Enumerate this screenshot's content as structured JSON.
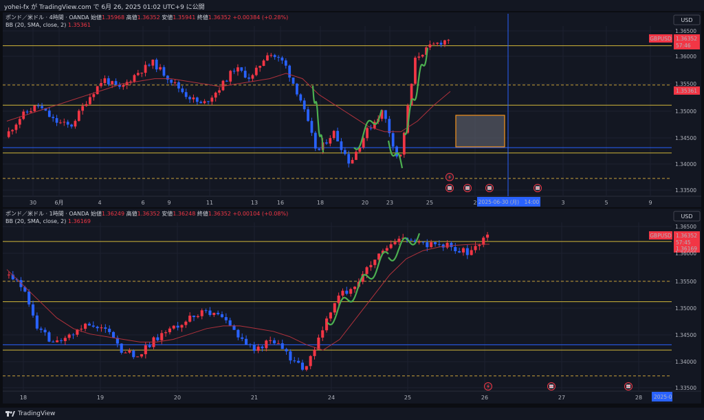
{
  "header": {
    "text": "yohei-fx が TradingView.com で 6月 26, 2025 01:02 UTC+9 に公開"
  },
  "footer": {
    "brand": "TradingView"
  },
  "panels": [
    {
      "title": "ポンド／米ドル · 4時間 · OANDA",
      "ohlc": [
        {
          "k": "始値",
          "v": "1.35968"
        },
        {
          "k": "高値",
          "v": "1.36352"
        },
        {
          "k": "安値",
          "v": "1.35941"
        },
        {
          "k": "終値",
          "v": "1.36352"
        },
        {
          "k": "",
          "v": "+0.00384 (+0.28%)"
        }
      ],
      "bb_label": "BB (20, SMA, close, 2)",
      "bb_value": "1.35361",
      "currency": "USD",
      "symbol": "GBPUSD",
      "price_badge": "1.36352",
      "countdown": "57:46",
      "bb_badge": "1.35361",
      "crosshair_label": "2025-06-30 (月)　14:00",
      "price_ticks": [
        "1.36500",
        "1.36000",
        "1.35500",
        "1.35000",
        "1.34500",
        "1.34000",
        "1.33500"
      ],
      "time_ticks": [
        "30",
        "6月",
        "4",
        "6",
        "9",
        "11",
        "13",
        "16",
        "18",
        "20",
        "23",
        "25",
        "2",
        "3",
        "5",
        "9"
      ]
    },
    {
      "title": "ポンド／米ドル · 1時間 · OANDA",
      "ohlc": [
        {
          "k": "始値",
          "v": "1.36249"
        },
        {
          "k": "高値",
          "v": "1.36352"
        },
        {
          "k": "安値",
          "v": "1.36248"
        },
        {
          "k": "終値",
          "v": "1.36352"
        },
        {
          "k": "",
          "v": "+0.00104 (+0.08%)"
        }
      ],
      "bb_label": "BB (20, SMA, close, 2)",
      "bb_value": "1.36169",
      "currency": "USD",
      "symbol": "GBPUSD",
      "price_badge": "1.36352",
      "countdown": "57:45",
      "bb_badge": "1.36169",
      "crosshair_label": "2025-0",
      "price_ticks": [
        "1.36500",
        "1.36000",
        "1.35500",
        "1.35000",
        "1.34500",
        "1.34000",
        "1.33500"
      ],
      "time_ticks": [
        "18",
        "19",
        "20",
        "21",
        "24",
        "25",
        "26",
        "27",
        "28"
      ]
    }
  ],
  "chart_data": [
    {
      "type": "candlestick",
      "title": "ポンド／米ドル · 4時間 · OANDA",
      "ylim": [
        1.3335,
        1.3658
      ],
      "x": [
        "30",
        "6月",
        "4",
        "6",
        "9",
        "11",
        "13",
        "16",
        "18",
        "20",
        "23",
        "25"
      ],
      "levels": {
        "yellow": [
          1.3622,
          1.351,
          1.342
        ],
        "dashed": [
          1.3548,
          1.3372
        ],
        "blue": [
          1.343
        ]
      },
      "close_path": [
        1.345,
        1.349,
        1.351,
        1.348,
        1.347,
        1.352,
        1.356,
        1.354,
        1.357,
        1.359,
        1.356,
        1.353,
        1.351,
        1.354,
        1.358,
        1.356,
        1.361,
        1.359,
        1.352,
        1.342,
        1.346,
        1.34,
        1.346,
        1.35,
        1.34,
        1.36,
        1.3622,
        1.3635
      ],
      "bb_mid": [
        1.348,
        1.349,
        1.35,
        1.351,
        1.352,
        1.353,
        1.354,
        1.355,
        1.3555,
        1.356,
        1.356,
        1.3555,
        1.355,
        1.3545,
        1.355,
        1.3555,
        1.356,
        1.357,
        1.356,
        1.353,
        1.351,
        1.349,
        1.347,
        1.346,
        1.346,
        1.348,
        1.351,
        1.3536
      ]
    },
    {
      "type": "candlestick",
      "title": "ポンド／米ドル · 1時間 · OANDA",
      "ylim": [
        1.3335,
        1.3658
      ],
      "x": [
        "18",
        "19",
        "20",
        "21",
        "24",
        "25",
        "26",
        "27",
        "28"
      ],
      "levels": {
        "yellow": [
          1.3622,
          1.351,
          1.342
        ],
        "dashed": [
          1.3548,
          1.3372
        ],
        "blue": [
          1.343
        ]
      },
      "close_path": [
        1.356,
        1.354,
        1.346,
        1.343,
        1.345,
        1.347,
        1.346,
        1.342,
        1.341,
        1.344,
        1.346,
        1.348,
        1.349,
        1.348,
        1.345,
        1.342,
        1.344,
        1.341,
        1.338,
        1.345,
        1.352,
        1.354,
        1.358,
        1.361,
        1.363,
        1.3615,
        1.362,
        1.361,
        1.36,
        1.3635
      ],
      "bb_mid": [
        1.357,
        1.354,
        1.351,
        1.348,
        1.346,
        1.345,
        1.3445,
        1.344,
        1.3435,
        1.3435,
        1.344,
        1.345,
        1.346,
        1.3465,
        1.3465,
        1.346,
        1.3455,
        1.3445,
        1.343,
        1.342,
        1.344,
        1.348,
        1.352,
        1.356,
        1.359,
        1.3605,
        1.3612,
        1.3615,
        1.3617,
        1.3617
      ]
    }
  ]
}
